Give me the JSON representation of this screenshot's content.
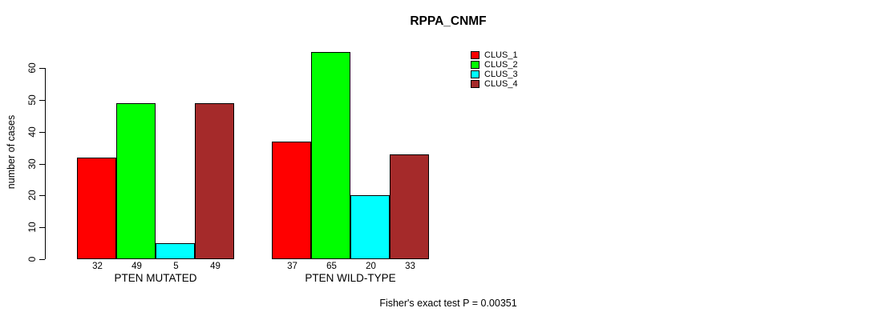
{
  "title": "RPPA_CNMF",
  "caption": "Fisher's exact test P = 0.00351",
  "y_axis": {
    "label": "number of cases",
    "ticks": [
      0,
      10,
      20,
      30,
      40,
      50,
      60
    ]
  },
  "legend": {
    "items": [
      {
        "label": "CLUS_1",
        "color": "#FF0000"
      },
      {
        "label": "CLUS_2",
        "color": "#00FF00"
      },
      {
        "label": "CLUS_3",
        "color": "#00FFFF"
      },
      {
        "label": "CLUS_4",
        "color": "#A52A2A"
      }
    ]
  },
  "chart_data": {
    "type": "bar",
    "title": "RPPA_CNMF",
    "xlabel": "",
    "ylabel": "number of cases",
    "ylim": [
      0,
      65
    ],
    "y_ticks": [
      0,
      10,
      20,
      30,
      40,
      50,
      60
    ],
    "grid": false,
    "legend_position": "top-right",
    "categories": [
      "PTEN MUTATED",
      "PTEN WILD-TYPE"
    ],
    "series": [
      {
        "name": "CLUS_1",
        "color": "#FF0000",
        "values": [
          32,
          37
        ]
      },
      {
        "name": "CLUS_2",
        "color": "#00FF00",
        "values": [
          49,
          65
        ]
      },
      {
        "name": "CLUS_3",
        "color": "#00FFFF",
        "values": [
          5,
          20
        ]
      },
      {
        "name": "CLUS_4",
        "color": "#A52A2A",
        "values": [
          49,
          33
        ]
      }
    ],
    "bar_labels": [
      [
        32,
        49,
        5,
        49
      ],
      [
        37,
        65,
        20,
        33
      ]
    ],
    "annotation": "Fisher's exact test P = 0.00351"
  }
}
